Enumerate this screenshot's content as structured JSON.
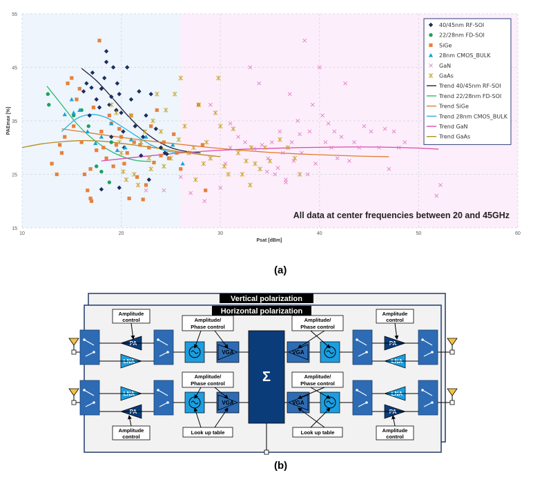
{
  "captions": {
    "a": "(a)",
    "b": "(b)"
  },
  "chart_data": {
    "type": "scatter",
    "xlabel": "Psat [dBm]",
    "ylabel": "PAEmax [%]",
    "xlim": [
      10,
      60
    ],
    "ylim": [
      15,
      55
    ],
    "xticks": [
      "10",
      "20",
      "30",
      "40",
      "50",
      "60"
    ],
    "yticks": [
      "15",
      "25",
      "35",
      "45",
      "55"
    ],
    "annotation": "All data at center frequencies between 20 and 45GHz",
    "grid": true,
    "legend_position": "top-right",
    "background_bands": [
      {
        "from": 10,
        "to": 26,
        "color": "#eef5fc"
      },
      {
        "from": 26,
        "to": 60,
        "color": "#fdeefb"
      }
    ],
    "series": [
      {
        "name": "40/45nm RF-SOI",
        "marker": "diamond",
        "color": "#1b2f5e",
        "points": [
          [
            16.2,
            40.5
          ],
          [
            16.5,
            42
          ],
          [
            17,
            41.2
          ],
          [
            17.1,
            44
          ],
          [
            17.5,
            39
          ],
          [
            17.8,
            37.5
          ],
          [
            18,
            41
          ],
          [
            18.3,
            43
          ],
          [
            18.5,
            46
          ],
          [
            18.8,
            38
          ],
          [
            19,
            39.5
          ],
          [
            19.2,
            45
          ],
          [
            19.5,
            37
          ],
          [
            19.6,
            42
          ],
          [
            19.8,
            40
          ],
          [
            20,
            36.5
          ],
          [
            20.2,
            33
          ],
          [
            20.6,
            45
          ],
          [
            21,
            39
          ],
          [
            21.4,
            34
          ],
          [
            21.8,
            40.5
          ],
          [
            22.2,
            32
          ],
          [
            22.5,
            36
          ],
          [
            23,
            40
          ],
          [
            23.5,
            33.5
          ],
          [
            24,
            30
          ],
          [
            18.5,
            48
          ],
          [
            19,
            32
          ],
          [
            20.3,
            30
          ],
          [
            22,
            28.5
          ],
          [
            24.4,
            29
          ],
          [
            16.8,
            36
          ],
          [
            19.8,
            22.5
          ],
          [
            22.8,
            24
          ],
          [
            18,
            22.2
          ],
          [
            24.6,
            28.8
          ]
        ]
      },
      {
        "name": "22/28nm FD-SOI",
        "marker": "circle",
        "color": "#1aa35b",
        "points": [
          [
            12.6,
            40
          ],
          [
            12.7,
            38
          ],
          [
            15.2,
            36
          ],
          [
            16,
            37
          ],
          [
            17.5,
            26.5
          ],
          [
            18,
            25.5
          ],
          [
            18.8,
            23.5
          ],
          [
            16.7,
            34
          ],
          [
            19,
            31
          ]
        ]
      },
      {
        "name": "SiGe",
        "marker": "square",
        "color": "#e8803c",
        "points": [
          [
            13,
            27
          ],
          [
            13.8,
            30.5
          ],
          [
            14.3,
            32
          ],
          [
            14.6,
            42
          ],
          [
            15.2,
            34
          ],
          [
            15.5,
            39
          ],
          [
            15.8,
            41
          ],
          [
            16,
            31
          ],
          [
            16.3,
            25
          ],
          [
            16.6,
            22
          ],
          [
            16.9,
            20.5
          ],
          [
            17.2,
            37.5
          ],
          [
            17.5,
            29.5
          ],
          [
            17.8,
            50
          ],
          [
            18,
            33
          ],
          [
            18.2,
            30
          ],
          [
            18.5,
            28
          ],
          [
            18.8,
            36
          ],
          [
            19,
            34.5
          ],
          [
            19.2,
            26.5
          ],
          [
            19.5,
            30.5
          ],
          [
            19.8,
            33.5
          ],
          [
            20,
            32
          ],
          [
            20.3,
            27
          ],
          [
            20.6,
            29
          ],
          [
            21,
            36
          ],
          [
            21.3,
            31
          ],
          [
            21.6,
            24.5
          ],
          [
            21.9,
            30.5
          ],
          [
            22.2,
            20.3
          ],
          [
            22.5,
            23
          ],
          [
            22.8,
            30
          ],
          [
            23,
            34
          ],
          [
            23.3,
            27.2
          ],
          [
            23.6,
            37
          ],
          [
            24,
            28.5
          ],
          [
            24.3,
            31
          ],
          [
            24.8,
            28
          ],
          [
            25.3,
            32.5
          ],
          [
            25.6,
            29
          ],
          [
            26,
            26
          ],
          [
            27.8,
            38
          ],
          [
            28.2,
            30.5
          ],
          [
            28.5,
            22
          ],
          [
            14,
            29
          ],
          [
            15,
            43
          ],
          [
            16.9,
            26
          ],
          [
            20.8,
            20.5
          ],
          [
            13.5,
            25
          ],
          [
            17,
            20
          ]
        ]
      },
      {
        "name": "28nm CMOS_BULK",
        "marker": "triangle",
        "color": "#1ba2d6",
        "points": [
          [
            14.3,
            36.2
          ],
          [
            15.2,
            36.5
          ],
          [
            15.8,
            37
          ],
          [
            16.6,
            33
          ],
          [
            17.4,
            30.8
          ],
          [
            18,
            32
          ],
          [
            19,
            34.5
          ],
          [
            19.6,
            29.5
          ],
          [
            20.4,
            30
          ],
          [
            21,
            31.5
          ],
          [
            22.5,
            32
          ],
          [
            25.2,
            30.5
          ],
          [
            26.2,
            27
          ],
          [
            15,
            39
          ]
        ]
      },
      {
        "name": "GaN",
        "marker": "x",
        "color": "#e07ec8",
        "points": [
          [
            22.5,
            22
          ],
          [
            24.3,
            22
          ],
          [
            26,
            24.5
          ],
          [
            27,
            21.5
          ],
          [
            28.4,
            20
          ],
          [
            29,
            38
          ],
          [
            30,
            22.5
          ],
          [
            30.5,
            27
          ],
          [
            31,
            34.5
          ],
          [
            31.8,
            32
          ],
          [
            32.5,
            31
          ],
          [
            33,
            45
          ],
          [
            33.4,
            29.8
          ],
          [
            33.9,
            42
          ],
          [
            34.2,
            30.5
          ],
          [
            34.8,
            28
          ],
          [
            35.2,
            31
          ],
          [
            35.5,
            25
          ],
          [
            35.8,
            26.2
          ],
          [
            36,
            33
          ],
          [
            36.3,
            29
          ],
          [
            36.6,
            23.5
          ],
          [
            37,
            40
          ],
          [
            37.2,
            31
          ],
          [
            37.4,
            27.5
          ],
          [
            37.8,
            35
          ],
          [
            38,
            32.5
          ],
          [
            38.2,
            29
          ],
          [
            38.5,
            50
          ],
          [
            38.8,
            25
          ],
          [
            39,
            33
          ],
          [
            39.3,
            38
          ],
          [
            39.6,
            27
          ],
          [
            40,
            45
          ],
          [
            40.3,
            36
          ],
          [
            40.6,
            31
          ],
          [
            40.9,
            34.5
          ],
          [
            41.2,
            30
          ],
          [
            41.5,
            33
          ],
          [
            41.8,
            28
          ],
          [
            42.2,
            32
          ],
          [
            42.6,
            42
          ],
          [
            43,
            27.5
          ],
          [
            43.5,
            31
          ],
          [
            44,
            30
          ],
          [
            44.5,
            34
          ],
          [
            45.2,
            33
          ],
          [
            46,
            30
          ],
          [
            46.6,
            33.5
          ],
          [
            47,
            26
          ],
          [
            47.5,
            33
          ],
          [
            48,
            30
          ],
          [
            48.6,
            31
          ],
          [
            52.2,
            23
          ],
          [
            51.8,
            21
          ],
          [
            36.6,
            24
          ],
          [
            31,
            30
          ],
          [
            34.7,
            25.5
          ]
        ]
      },
      {
        "name": "GaAs",
        "marker": "star",
        "color": "#c8a532",
        "points": [
          [
            19,
            38
          ],
          [
            19.5,
            36.5
          ],
          [
            19.8,
            31
          ],
          [
            20,
            29
          ],
          [
            20.2,
            25.5
          ],
          [
            20.5,
            24
          ],
          [
            21,
            36
          ],
          [
            21.3,
            25
          ],
          [
            21.7,
            23
          ],
          [
            22,
            31
          ],
          [
            22.4,
            33
          ],
          [
            22.8,
            28
          ],
          [
            23.2,
            35
          ],
          [
            23.6,
            40
          ],
          [
            24,
            33
          ],
          [
            24.5,
            37
          ],
          [
            25,
            28
          ],
          [
            25.4,
            40
          ],
          [
            26,
            43
          ],
          [
            26.4,
            34
          ],
          [
            26.8,
            29
          ],
          [
            27.3,
            30
          ],
          [
            27.8,
            38
          ],
          [
            28.3,
            27
          ],
          [
            29,
            28
          ],
          [
            29.5,
            36.5
          ],
          [
            30,
            34
          ],
          [
            30.4,
            26.5
          ],
          [
            30.8,
            25
          ],
          [
            31.3,
            33.5
          ],
          [
            31.8,
            29
          ],
          [
            32.2,
            25
          ],
          [
            32.6,
            27.5
          ],
          [
            33.1,
            30
          ],
          [
            33.5,
            27
          ],
          [
            34,
            26
          ],
          [
            34.5,
            30
          ],
          [
            35,
            27.5
          ],
          [
            36,
            31.5
          ],
          [
            36.8,
            30
          ],
          [
            37.5,
            28
          ],
          [
            38,
            25
          ],
          [
            28.6,
            31
          ],
          [
            27.5,
            24
          ],
          [
            29.8,
            43
          ],
          [
            23,
            26
          ],
          [
            25.8,
            31.5
          ],
          [
            24.3,
            26.5
          ],
          [
            33,
            23
          ]
        ]
      }
    ],
    "trends": [
      {
        "name": "Trend 40/45nm RF-SOI",
        "color": "#1f1f3a",
        "x": [
          16,
          17.5,
          19,
          20.5,
          22,
          23.5,
          25,
          26.5,
          28
        ],
        "y": [
          44.8,
          42.5,
          39.5,
          36.3,
          33.5,
          31.4,
          30,
          29.3,
          29
        ]
      },
      {
        "name": "Trend 22/28nm FD-SOI",
        "color": "#2bb96e",
        "x": [
          12.5,
          14,
          15.5,
          17,
          18.5,
          20,
          21.5,
          23
        ],
        "y": [
          41.5,
          38,
          34.5,
          31.8,
          29.8,
          28.4,
          27.6,
          27.4
        ]
      },
      {
        "name": "Trend SiGe",
        "color": "#e07b2a",
        "x": [
          14,
          17,
          20,
          23,
          26,
          29,
          32,
          35,
          38,
          41,
          44,
          47
        ],
        "y": [
          33.5,
          32.7,
          31.9,
          31.2,
          30.6,
          30,
          29.5,
          29.1,
          28.8,
          28.6,
          28.4,
          28.3
        ]
      },
      {
        "name": "Trend 28nm CMOS_BULK",
        "color": "#27b1e4",
        "x": [
          14,
          15.5,
          17,
          18.5,
          20,
          21.5,
          23,
          24.5,
          26
        ],
        "y": [
          33,
          35.4,
          36.2,
          35.6,
          34,
          32.2,
          30.5,
          29.4,
          29
        ]
      },
      {
        "name": "Trend GaN",
        "color": "#d94aa8",
        "x": [
          18,
          22,
          26,
          30,
          34,
          38,
          42,
          46,
          50,
          52
        ],
        "y": [
          27.5,
          28.3,
          29,
          29.5,
          29.8,
          30,
          30.1,
          30.1,
          29.9,
          29.7
        ]
      },
      {
        "name": "Trend GaAs",
        "color": "#b88b1d",
        "x": [
          10,
          12,
          14,
          16,
          18,
          20,
          22,
          24,
          26,
          28,
          30
        ],
        "y": [
          30,
          30.7,
          31.1,
          31.3,
          31.2,
          30.8,
          30.3,
          29.8,
          29.2,
          28.7,
          28.3
        ]
      }
    ]
  },
  "diagram": {
    "vertical_polarization": "Vertical polarization",
    "horizontal_polarization": "Horizontal polarization",
    "amplitude_control_line1": "Amplitude",
    "amplitude_control_line2": "control",
    "amp_phase_line1": "Amplitude/",
    "amp_phase_line2": "Phase control",
    "pa": "PA",
    "lna": "LNA",
    "vga": "VGA",
    "sigma": "Σ",
    "look_up_table": "Look up table",
    "colors": {
      "dark_block": "#0b3c7a",
      "mid_block": "#2d6cb4",
      "light_block": "#1c9ee0",
      "antenna": "#f5c342",
      "panel": "#f2f2f2"
    }
  }
}
